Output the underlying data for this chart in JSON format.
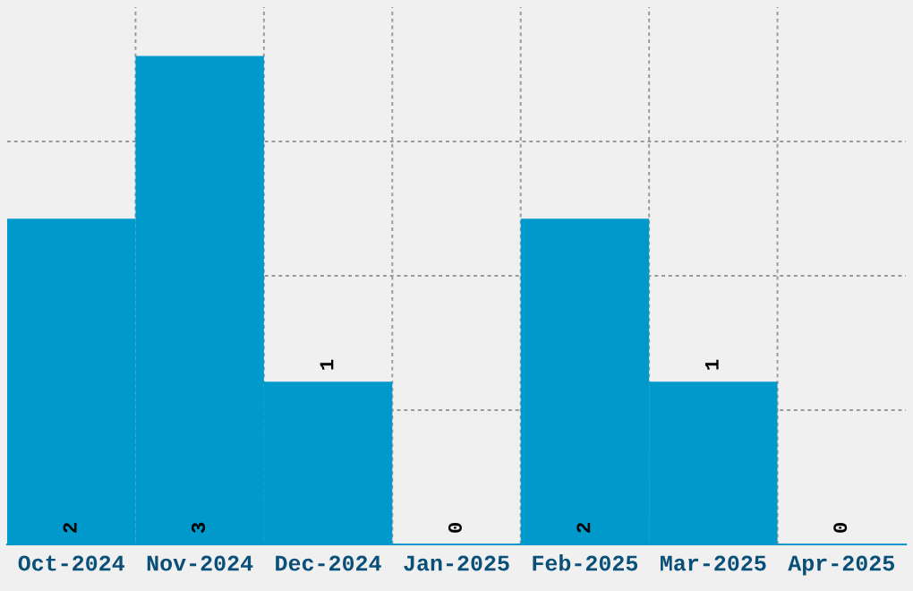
{
  "chart_data": {
    "type": "bar",
    "categories": [
      "Oct-2024",
      "Nov-2024",
      "Dec-2024",
      "Jan-2025",
      "Feb-2025",
      "Mar-2025",
      "Apr-2025"
    ],
    "values": [
      2,
      3,
      1,
      0,
      2,
      1,
      0
    ],
    "color": "#0099cc",
    "ylim": [
      0,
      3.3
    ],
    "yticks": [
      {
        "value": 0.825,
        "label": null
      },
      {
        "value": 1.65,
        "label": null
      },
      {
        "value": 2.475,
        "label": null
      }
    ],
    "tick_labels": "x",
    "grid": true,
    "data_labels": true
  }
}
